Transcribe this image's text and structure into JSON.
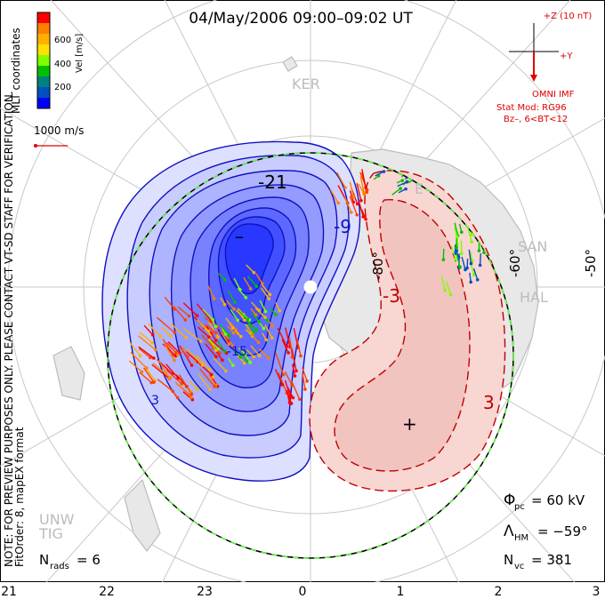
{
  "title": "04/May/2006 09:00–09:02 UT",
  "coordinates": "MLT coordinates",
  "velocity_scale": {
    "label": "Vel [m/s]",
    "ticks": [
      "600",
      "400",
      "200"
    ],
    "colors": [
      "#ff0000",
      "#ff7f00",
      "#ffb000",
      "#ffe000",
      "#7fff00",
      "#00c000",
      "#008080",
      "#0050c0",
      "#0000ff"
    ]
  },
  "reference_vector": "1000 m/s",
  "imf": {
    "z_label": "+Z (10 nT)",
    "y_label": "+Y",
    "title": "OMNI IMF",
    "stat_model": "Stat Mod: RG96",
    "bz_bt": "Bz–, 6<BT<12"
  },
  "preview_note": "NOTE: FOR PREVIEW PURPOSES ONLY. PLEASE CONTACT VT-SD STAFF FOR VERIFICATION.",
  "fit_note": "FitOrder: 8, mapEX format",
  "stations": [
    "KER",
    "SAN",
    "HAL",
    "UNW",
    "TIG",
    "E"
  ],
  "latitude_labels": [
    "-80°",
    "-60°",
    "-50°"
  ],
  "contour_labels": [
    "-21",
    "-9",
    "-15",
    "-3",
    "3",
    "3"
  ],
  "extrema": {
    "min": "–",
    "max": "+"
  },
  "stats": {
    "phi_sym": "Φ",
    "phi_sub": "pc",
    "phi_val": "= 60 kV",
    "lambda_sym": "Λ",
    "lambda_sub": "HM",
    "lambda_val": "= −59°",
    "nvc_sym": "N",
    "nvc_sub": "vc",
    "nvc_val": "= 381",
    "nrads_sym": "N",
    "nrads_sub": "rads",
    "nrads_val": "= 6"
  },
  "mlt_axis": [
    "21",
    "22",
    "23",
    "0",
    "1",
    "2",
    "3"
  ],
  "colors": {
    "negative": "#2030ff",
    "negative_line": "#1010c0",
    "positive_fill": "#f8d6d2",
    "positive_line": "#c00000",
    "grid": "#c8c8c8",
    "land": "#d4d4d4",
    "text_red": "#e00000"
  }
}
